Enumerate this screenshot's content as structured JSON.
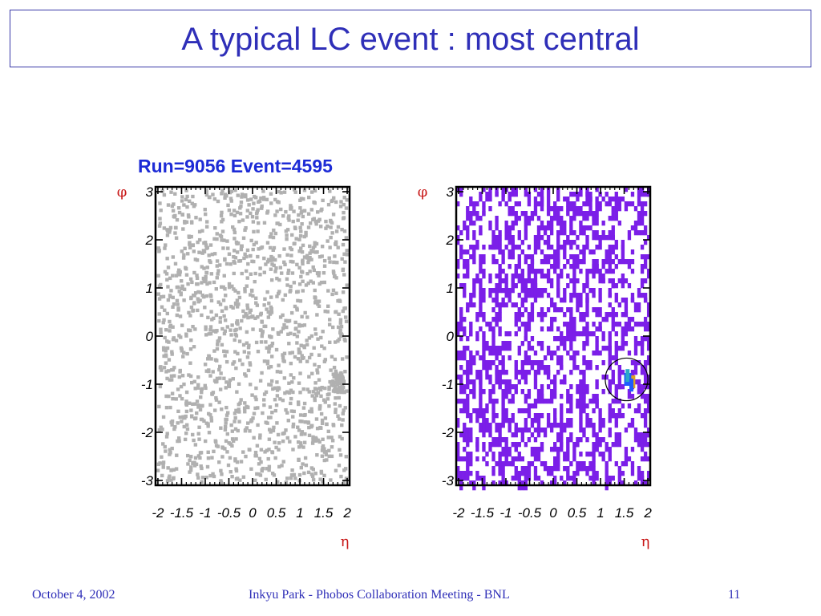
{
  "slide": {
    "title": "A typical LC event : most central",
    "run_label": "Run=9056 Event=4595",
    "footer": {
      "date": "October 4, 2002",
      "center": "Inkyu Park - Phobos Collaboration Meeting - BNL",
      "page": "11"
    }
  },
  "chart_data": [
    {
      "type": "scatter",
      "title": "Run=9056 Event=4595",
      "xlabel": "η",
      "ylabel": "φ",
      "xlim": [
        -2.05,
        2.05
      ],
      "ylim": [
        -3.1,
        3.1
      ],
      "x_ticks": [
        -2,
        -1.5,
        -1,
        -0.5,
        0,
        0.5,
        1,
        1.5,
        2
      ],
      "x_tick_labels": [
        "-2",
        "-1.5",
        "-1",
        "-0.5",
        "0",
        "0.5",
        "1",
        "1.5",
        "2"
      ],
      "y_ticks": [
        3,
        2,
        1,
        0,
        -1,
        -2,
        -3
      ],
      "y_tick_labels": [
        "3",
        "2",
        "1",
        "0",
        "-1",
        "-2",
        "-3"
      ],
      "marker_color": "#b0b0b0",
      "grid": false,
      "approx_point_count": 1500,
      "cluster": {
        "eta": 1.95,
        "phi": -0.95
      }
    },
    {
      "type": "heatmap",
      "xlabel": "η",
      "ylabel": "φ",
      "xlim": [
        -2.05,
        2.05
      ],
      "ylim": [
        -3.1,
        3.1
      ],
      "x_ticks": [
        -2,
        -1.5,
        -1,
        -0.5,
        0,
        0.5,
        1,
        1.5,
        2
      ],
      "x_tick_labels": [
        "-2",
        "-1.5",
        "-1",
        "-0.5",
        "0",
        "0.5",
        "1",
        "1.5",
        "2"
      ],
      "y_ticks": [
        3,
        2,
        1,
        0,
        -1,
        -2,
        -3
      ],
      "y_tick_labels": [
        "3",
        "2",
        "1",
        "0",
        "-1",
        "-2",
        "-3"
      ],
      "cell_color": "#7b1fe8",
      "hot_cell_colors": [
        "#1e5bff",
        "#2aa8c8",
        "#e0a020"
      ],
      "grid": false,
      "annotation": {
        "shape": "circle",
        "center_eta": 1.55,
        "center_phi": -0.9,
        "radius_eta": 0.45
      }
    }
  ]
}
